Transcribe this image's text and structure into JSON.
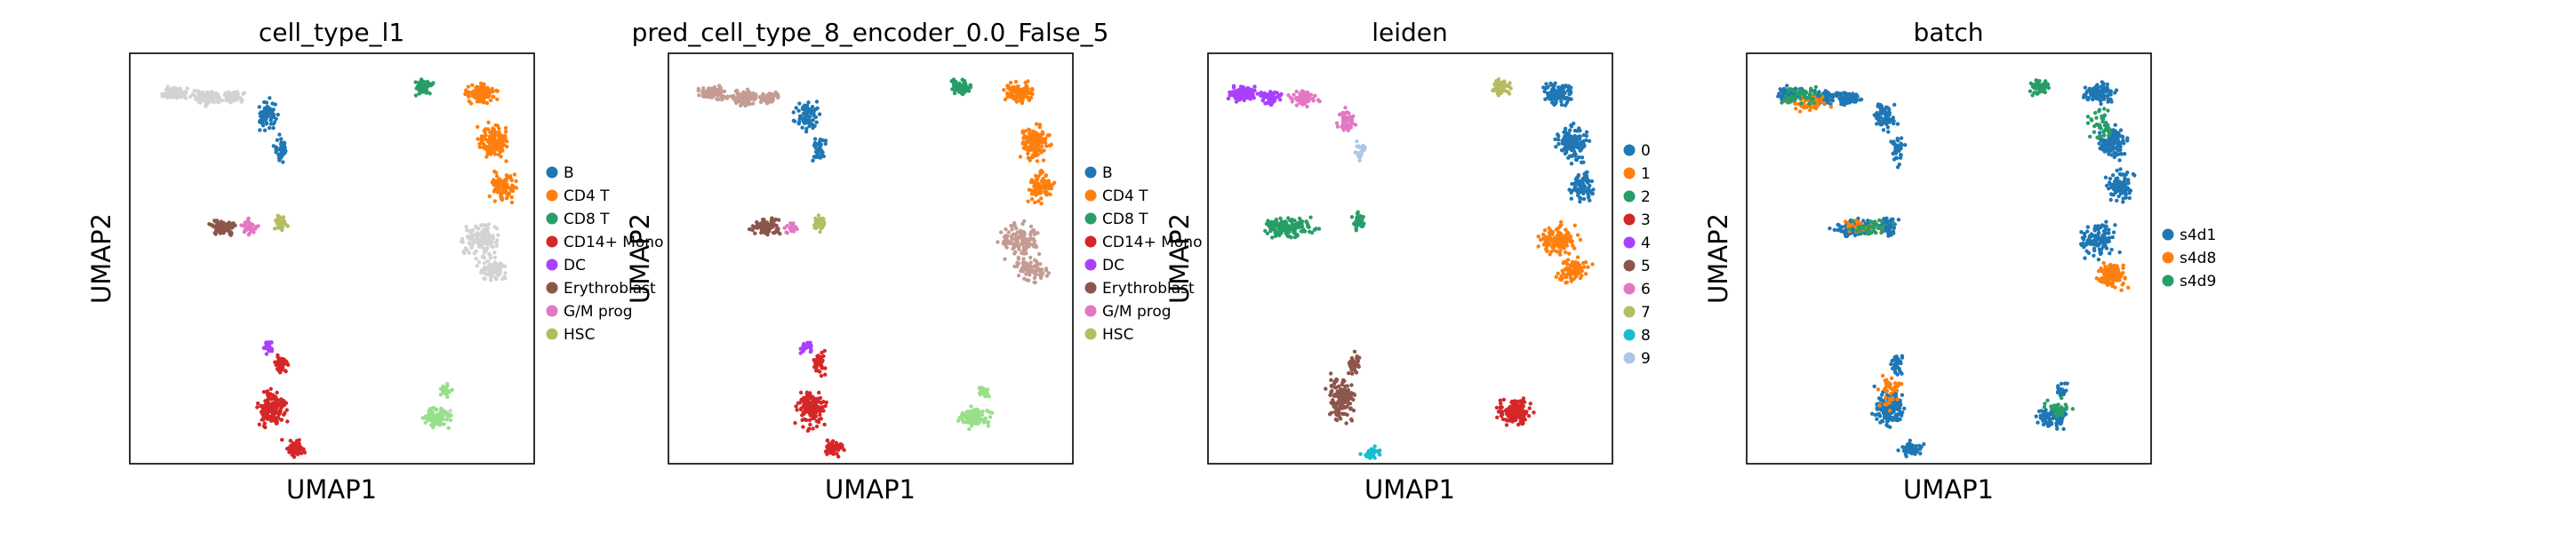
{
  "chart_data": [
    {
      "type": "scatter",
      "title": "cell_type_l1",
      "xlabel": "UMAP1",
      "ylabel": "UMAP2",
      "legend_position": "right",
      "grid": false,
      "series": [
        {
          "name": "B",
          "color": "#1f77b4"
        },
        {
          "name": "CD4 T",
          "color": "#ff7f0e"
        },
        {
          "name": "CD8 T",
          "color": "#279e68"
        },
        {
          "name": "CD14+ Mono",
          "color": "#d62728"
        },
        {
          "name": "DC",
          "color": "#aa40fc"
        },
        {
          "name": "Erythroblast",
          "color": "#8c564b"
        },
        {
          "name": "G/M prog",
          "color": "#e377c2"
        },
        {
          "name": "HSC",
          "color": "#b5bd61"
        }
      ]
    },
    {
      "type": "scatter",
      "title": "pred_cell_type_8_encoder_0.0_False_5",
      "xlabel": "UMAP1",
      "ylabel": "UMAP2",
      "legend_position": "right",
      "grid": false,
      "series": [
        {
          "name": "B",
          "color": "#1f77b4"
        },
        {
          "name": "CD4 T",
          "color": "#ff7f0e"
        },
        {
          "name": "CD8 T",
          "color": "#279e68"
        },
        {
          "name": "CD14+ Mono",
          "color": "#d62728"
        },
        {
          "name": "DC",
          "color": "#aa40fc"
        },
        {
          "name": "Erythroblast",
          "color": "#8c564b"
        },
        {
          "name": "G/M prog",
          "color": "#e377c2"
        },
        {
          "name": "HSC",
          "color": "#b5bd61"
        }
      ]
    },
    {
      "type": "scatter",
      "title": "leiden",
      "xlabel": "UMAP1",
      "ylabel": "UMAP2",
      "legend_position": "right",
      "grid": false,
      "series": [
        {
          "name": "0",
          "color": "#1f77b4"
        },
        {
          "name": "1",
          "color": "#ff7f0e"
        },
        {
          "name": "2",
          "color": "#279e68"
        },
        {
          "name": "3",
          "color": "#d62728"
        },
        {
          "name": "4",
          "color": "#aa40fc"
        },
        {
          "name": "5",
          "color": "#8c564b"
        },
        {
          "name": "6",
          "color": "#e377c2"
        },
        {
          "name": "7",
          "color": "#b5bd61"
        },
        {
          "name": "8",
          "color": "#17becf"
        },
        {
          "name": "9",
          "color": "#aec7e8"
        }
      ]
    },
    {
      "type": "scatter",
      "title": "batch",
      "xlabel": "UMAP1",
      "ylabel": "UMAP2",
      "legend_position": "right",
      "grid": false,
      "series": [
        {
          "name": "s4d1",
          "color": "#1f77b4"
        },
        {
          "name": "s4d8",
          "color": "#ff7f0e"
        },
        {
          "name": "s4d9",
          "color": "#279e68"
        }
      ]
    }
  ],
  "colors": {
    "unlabeled": "#d3d3d3",
    "predicted_other": "#c49c94",
    "hsc_light": "#98df8a",
    "axes": "#000000"
  }
}
